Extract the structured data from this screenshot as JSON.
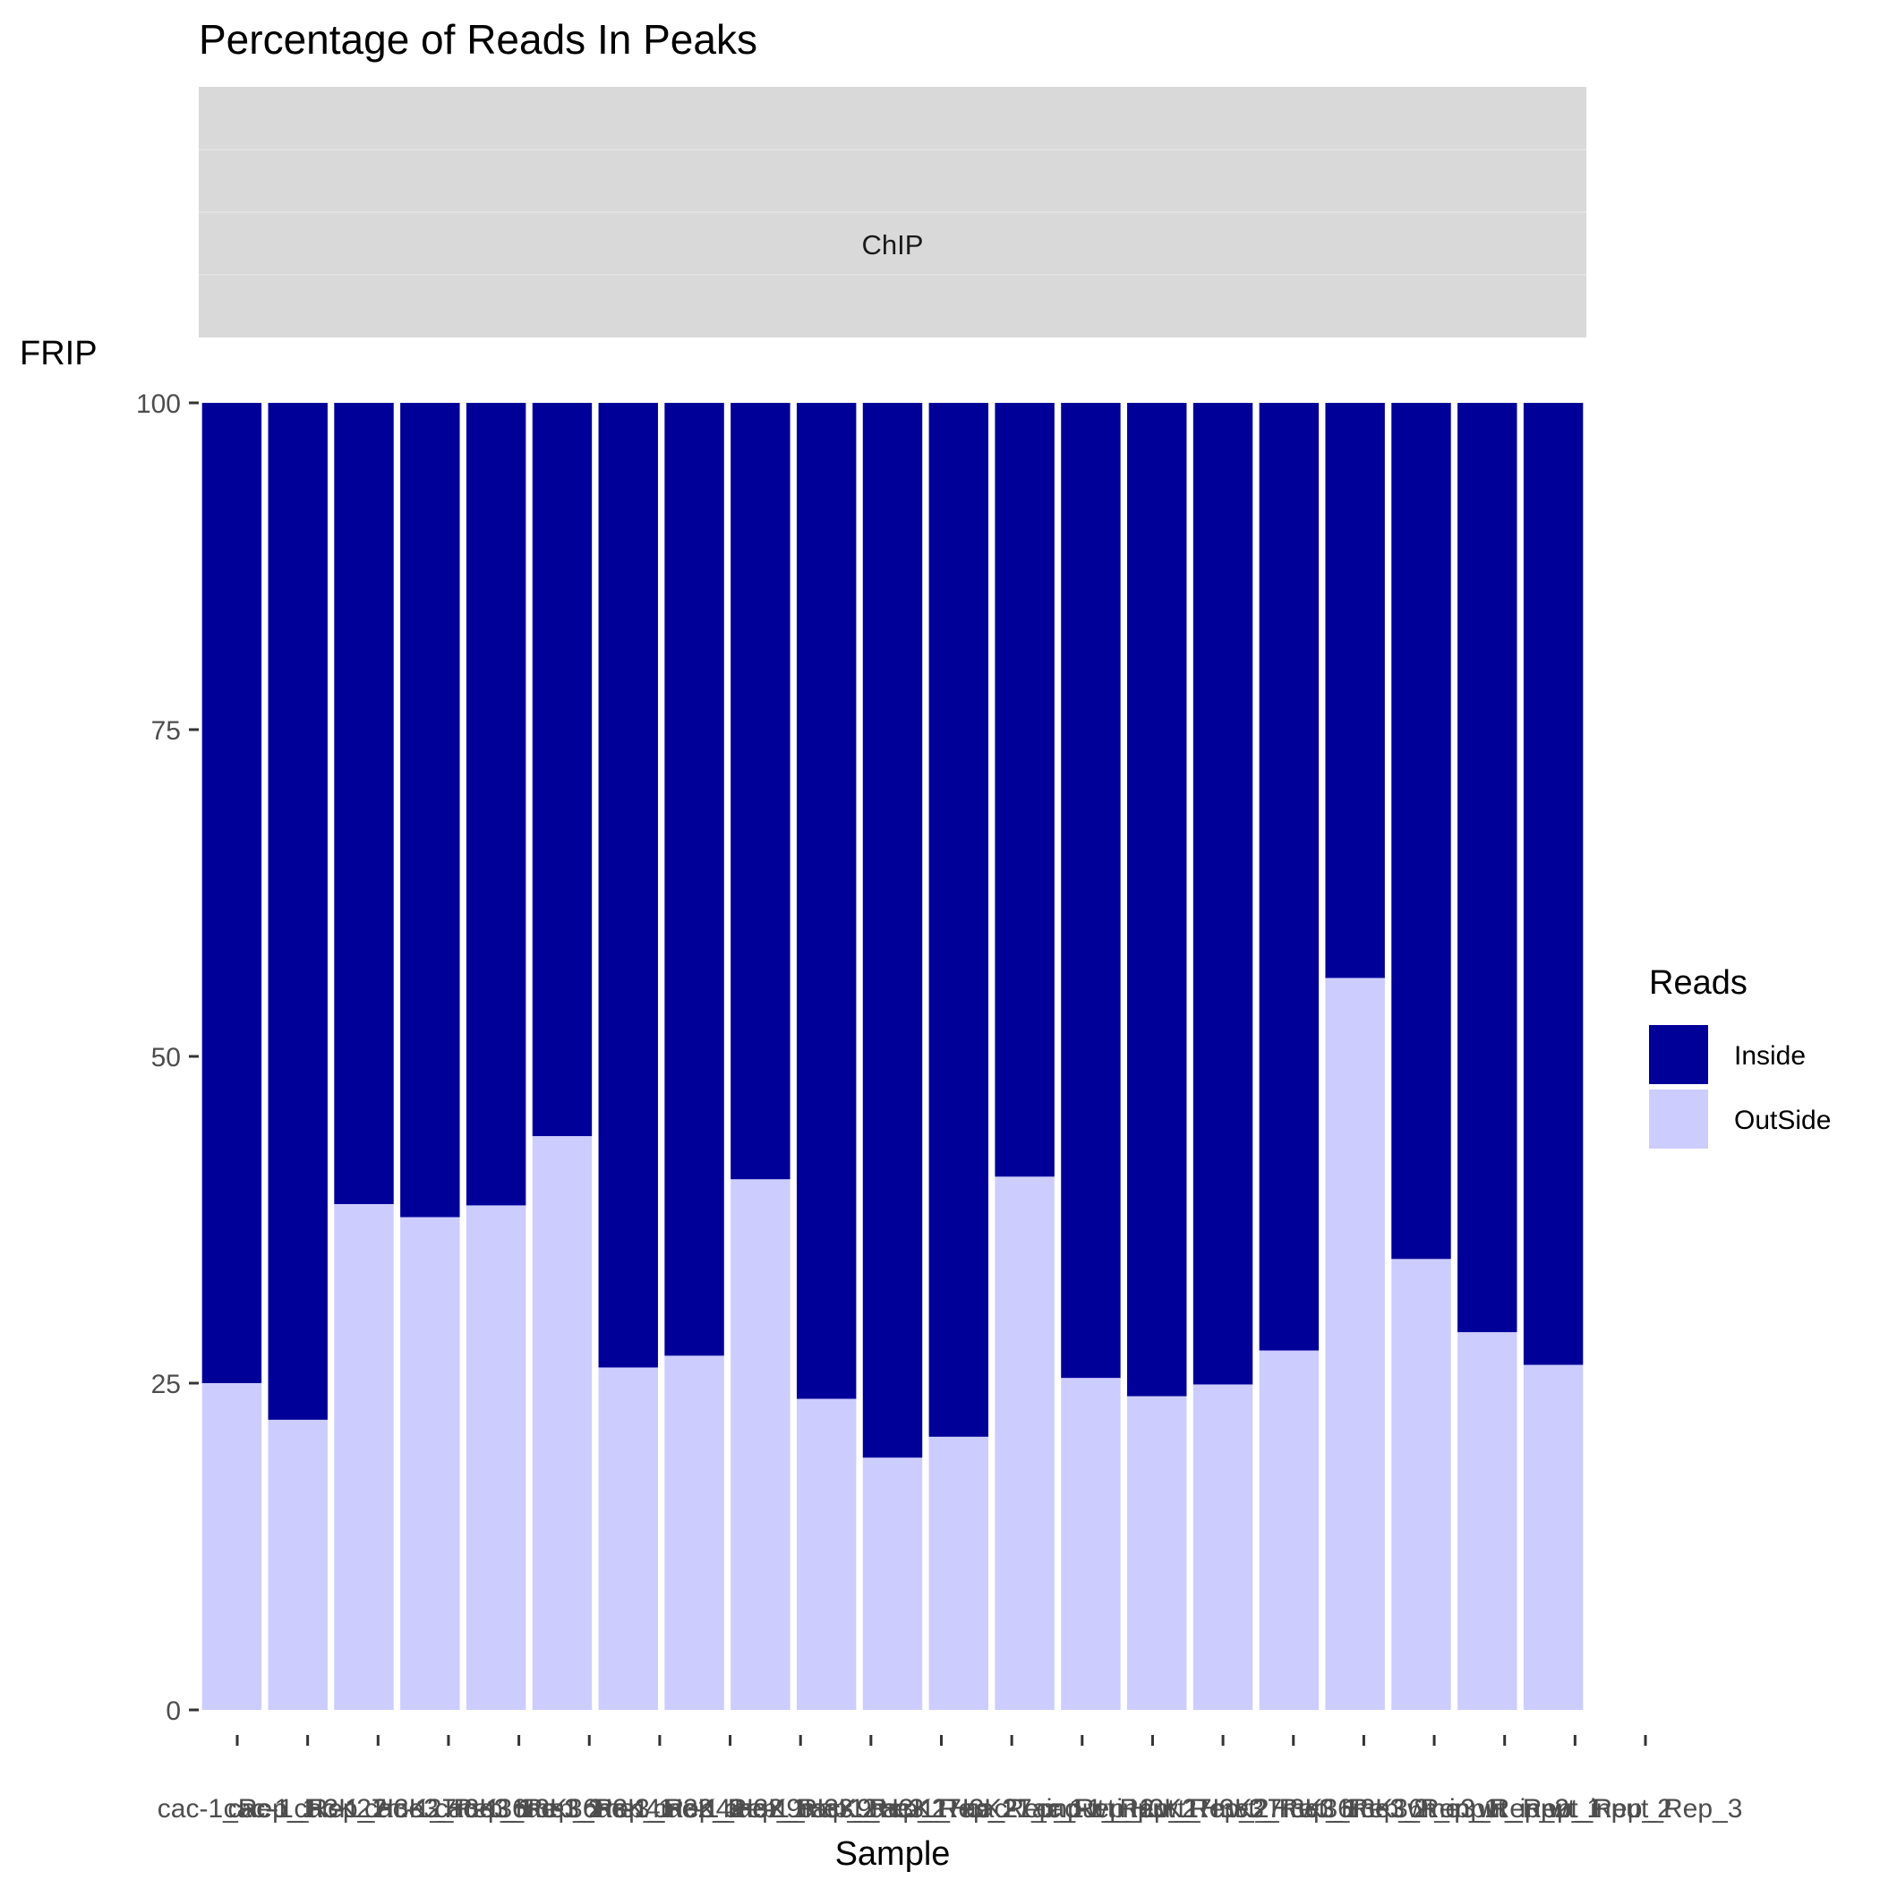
{
  "chart_data": {
    "type": "bar",
    "stacked": true,
    "title": "Percentage of Reads In Peaks",
    "facet_label": "ChIP",
    "xlabel": "Sample",
    "ylabel": "FRIP",
    "ylim": [
      0,
      100
    ],
    "yticks": [
      0,
      25,
      50,
      75,
      100
    ],
    "grid": false,
    "legend": {
      "title": "Reads",
      "position": "right"
    },
    "categories": [
      "cac-1_Rep_1",
      "cac-1_Rep_2",
      "cac-1_H3K27me3_Rep_1",
      "cac-1_H3K27me3_Rep_2",
      "cac-1_H3K36me3_Rep_1",
      "cac-1_H3K36me3_Rep_2",
      "cac-1_H3K4me2_Rep_1",
      "cac-1_H3K4me2_Rep_2",
      "cac-1_H3K9me3_Rep_1",
      "cac-1_H3K9me3_Rep_2",
      "cac-1_H3K27ac_Rep_1",
      "cac-1_H3K27ac_Rep_2",
      "cac-1_input_Rep_1",
      "cac-1_input_Rep_2",
      "wt_H3K27me3_Rep_1",
      "wt_H3K27me3_Rep_2",
      "wt_H3K36me3_Rep_1",
      "wt_H3K36me3_Rep_2",
      "wt_input_Rep_1",
      "wt_input_Rep_2",
      "wt_input_Rep_3"
    ],
    "series": [
      {
        "name": "Inside",
        "color": "#000099",
        "values": [
          75.0,
          77.8,
          61.3,
          62.3,
          61.4,
          56.1,
          73.8,
          72.9,
          59.4,
          76.2,
          80.7,
          79.1,
          59.2,
          74.6,
          76.0,
          75.1,
          72.5,
          44.0,
          65.5,
          71.1,
          73.6
        ]
      },
      {
        "name": "OutSide",
        "color": "#ccccff",
        "values": [
          25.0,
          22.2,
          38.7,
          37.7,
          38.6,
          43.9,
          26.2,
          27.1,
          40.6,
          23.8,
          19.3,
          20.9,
          40.8,
          25.4,
          24.0,
          24.9,
          27.5,
          56.0,
          34.5,
          28.9,
          26.4
        ]
      }
    ]
  }
}
